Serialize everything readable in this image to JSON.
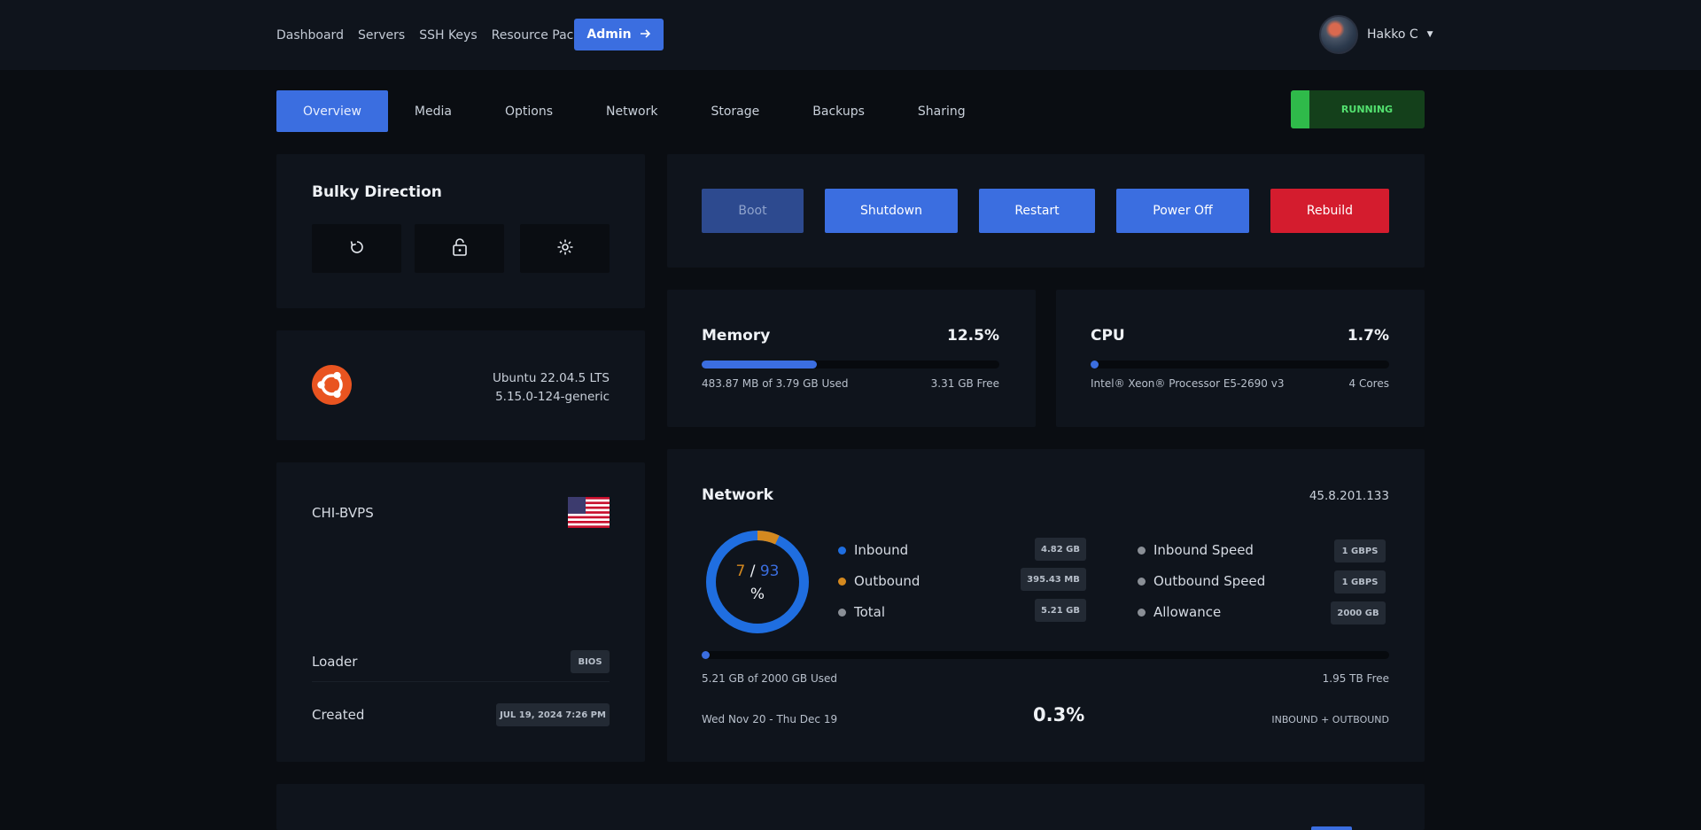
{
  "topnav": {
    "links": [
      "Dashboard",
      "Servers",
      "SSH Keys",
      "Resource Packs"
    ],
    "admin_label": "Admin",
    "admin_icon": "arrow-right-icon",
    "user_name": "Hakko C"
  },
  "tabs": [
    "Overview",
    "Media",
    "Options",
    "Network",
    "Storage",
    "Backups",
    "Sharing"
  ],
  "status": {
    "label": "RUNNING",
    "color": "#2fba4a"
  },
  "server": {
    "name": "Bulky Direction",
    "icons": [
      "reinstall-icon",
      "lock-icon",
      "gear-icon"
    ]
  },
  "os": {
    "name": "Ubuntu 22.04.5 LTS",
    "kernel": "5.15.0-124-generic",
    "icon": "ubuntu-logo-icon"
  },
  "location": {
    "name": "CHI-BVPS",
    "flag": "us-flag-icon",
    "loader_label": "Loader",
    "loader_value": "BIOS",
    "created_label": "Created",
    "created_value": "JUL 19, 2024 7:26 PM"
  },
  "actions": {
    "boot": "Boot",
    "shutdown": "Shutdown",
    "restart": "Restart",
    "power_off": "Power Off",
    "rebuild": "Rebuild"
  },
  "memory": {
    "title": "Memory",
    "percent": "12.5%",
    "fraction": 0.125,
    "used": "483.87 MB of 3.79 GB Used",
    "free": "3.31 GB Free"
  },
  "cpu": {
    "title": "CPU",
    "percent": "1.7%",
    "fraction": 0.017,
    "model": "Intel® Xeon® Processor E5-2690 v3",
    "cores": "4 Cores"
  },
  "network": {
    "title": "Network",
    "ip": "45.8.201.133",
    "donut_left": "7",
    "donut_sep": "/",
    "donut_right": "93",
    "donut_unit": "%",
    "donut_outbound_fraction": 0.07,
    "inbound_label": "Inbound",
    "inbound_value": "4.82 GB",
    "outbound_label": "Outbound",
    "outbound_value": "395.43 MB",
    "total_label": "Total",
    "total_value": "5.21 GB",
    "inbound_speed_label": "Inbound Speed",
    "inbound_speed_value": "1 GBPS",
    "outbound_speed_label": "Outbound Speed",
    "outbound_speed_value": "1 GBPS",
    "allowance_label": "Allowance",
    "allowance_value": "2000 GB",
    "used_text": "5.21 GB of 2000 GB Used",
    "free_text": "1.95 TB Free",
    "period": "Wed Nov 20 - Thu Dec 19",
    "usage_percent": "0.3%",
    "usage_fraction": 0.003,
    "mode": "INBOUND + OUTBOUND",
    "colors": {
      "inbound": "#1f6ee0",
      "outbound": "#d4891f",
      "total": "#8a8f96"
    }
  }
}
